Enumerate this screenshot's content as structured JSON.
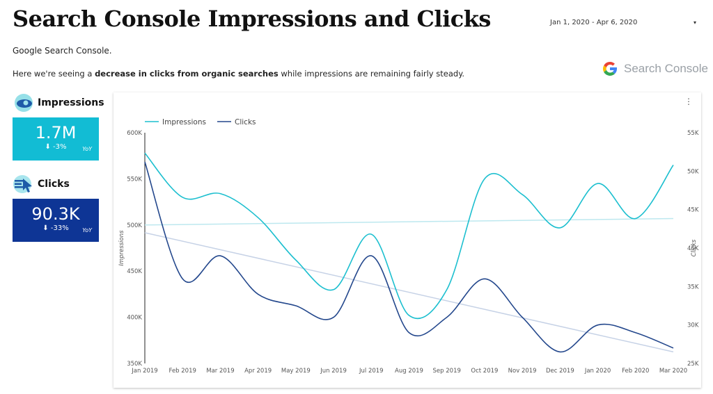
{
  "header": {
    "title": "Search Console Impressions and Clicks",
    "date_range": "Jan 1, 2020 - Apr 6, 2020",
    "source": "Google Search Console.",
    "desc_pre": "Here we're seeing a ",
    "desc_bold": "decrease in clicks from organic searches",
    "desc_post": " while impressions are remaining fairly steady."
  },
  "logo": {
    "g": "G",
    "text": "Search Console"
  },
  "kpis": {
    "impressions": {
      "label": "Impressions",
      "value": "1.7M",
      "arrow": "⬇",
      "delta": "-3%",
      "yoy": "YoY",
      "color": "#12BCD4"
    },
    "clicks": {
      "label": "Clicks",
      "value": "90.3K",
      "arrow": "⬇",
      "delta": "-33%",
      "yoy": "YoY",
      "color": "#0E3595"
    }
  },
  "colors": {
    "impressions": "#1CBFCF",
    "clicks": "#23478C",
    "trend_impressions": "#BDE8EF",
    "trend_clicks": "#C6D2E6"
  },
  "chart_data": {
    "type": "line",
    "categories": [
      "Jan 2019",
      "Feb 2019",
      "Mar 2019",
      "Apr 2019",
      "May 2019",
      "Jun 2019",
      "Jul 2019",
      "Aug 2019",
      "Sep 2019",
      "Oct 2019",
      "Nov 2019",
      "Dec 2019",
      "Jan 2020",
      "Feb 2020",
      "Mar 2020"
    ],
    "series": [
      {
        "name": "Impressions",
        "axis": "left",
        "values": [
          578000,
          530000,
          534000,
          508000,
          462000,
          430000,
          490000,
          402000,
          430000,
          550000,
          533000,
          497000,
          545000,
          507000,
          565000
        ]
      },
      {
        "name": "Clicks",
        "axis": "right",
        "values": [
          51200,
          36000,
          39000,
          34000,
          32500,
          31000,
          39000,
          29000,
          31000,
          36000,
          31000,
          26500,
          30000,
          29000,
          27000
        ]
      }
    ],
    "trendlines": [
      {
        "series": "Impressions",
        "start": 500000,
        "end": 507000
      },
      {
        "series": "Clicks",
        "start": 42000,
        "end": 26500
      }
    ],
    "y_left": {
      "label": "Impressions",
      "ticks": [
        "350K",
        "400K",
        "450K",
        "500K",
        "550K",
        "600K"
      ],
      "min": 350000,
      "max": 600000
    },
    "y_right": {
      "label": "Clicks",
      "ticks": [
        "25K",
        "30K",
        "35K",
        "40K",
        "45K",
        "50K",
        "55K"
      ],
      "min": 25000,
      "max": 55000
    },
    "legend": "top-left",
    "grid": false
  }
}
